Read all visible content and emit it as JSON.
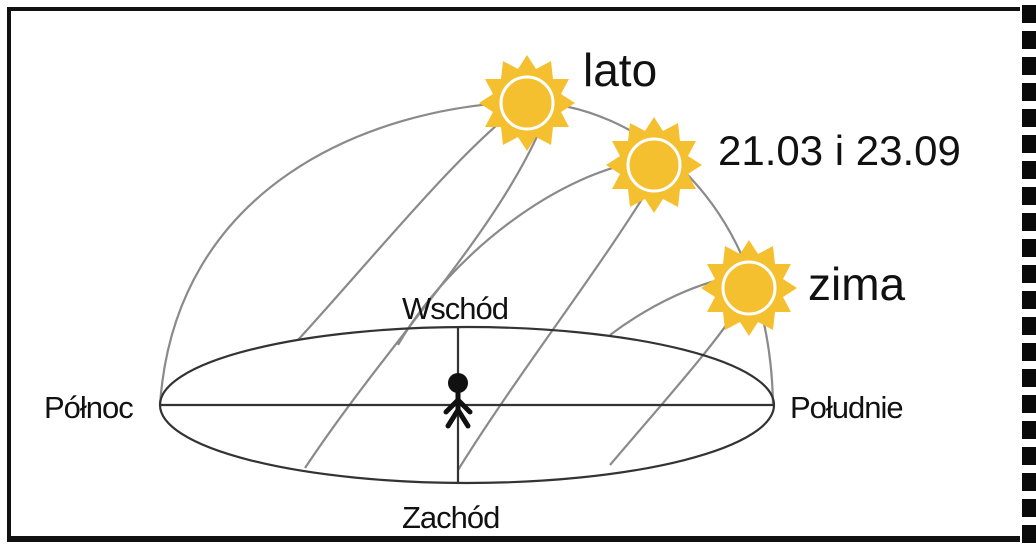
{
  "labels": {
    "summer": "lato",
    "equinox": "21.03 i 23.09",
    "winter": "zima",
    "north": "Północ",
    "east": "Wschód",
    "south": "Południe",
    "west": "Zachód"
  },
  "colors": {
    "sun": "#f5c030",
    "sun_ray": "#f5c030",
    "arc_line": "#8a8a8a",
    "horizon_line": "#333333",
    "person": "#111111"
  },
  "icons": {
    "sun": "sun-icon",
    "person": "person-icon"
  }
}
